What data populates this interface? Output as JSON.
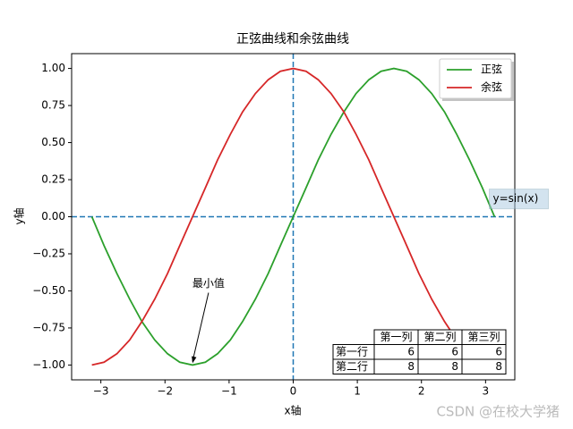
{
  "chart_data": {
    "type": "line",
    "title": "正弦曲线和余弦曲线",
    "x_label": "x轴",
    "y_label": "y轴",
    "x": [
      -3.14,
      -2.95,
      -2.75,
      -2.55,
      -2.36,
      -2.16,
      -1.96,
      -1.77,
      -1.57,
      -1.37,
      -1.18,
      -0.98,
      -0.79,
      -0.59,
      -0.39,
      -0.2,
      0,
      0.2,
      0.39,
      0.59,
      0.79,
      0.98,
      1.18,
      1.37,
      1.57,
      1.77,
      1.96,
      2.16,
      2.36,
      2.55,
      2.75,
      2.95,
      3.14
    ],
    "series": [
      {
        "name": "正弦",
        "color": "#2ca02c",
        "values": [
          0,
          -0.195,
          -0.383,
          -0.556,
          -0.707,
          -0.831,
          -0.924,
          -0.981,
          -1,
          -0.981,
          -0.924,
          -0.831,
          -0.707,
          -0.556,
          -0.383,
          -0.195,
          0,
          0.195,
          0.383,
          0.556,
          0.707,
          0.831,
          0.924,
          0.981,
          1,
          0.981,
          0.924,
          0.831,
          0.707,
          0.556,
          0.383,
          0.195,
          0
        ]
      },
      {
        "name": "余弦",
        "color": "#d62728",
        "values": [
          -1,
          -0.981,
          -0.924,
          -0.831,
          -0.707,
          -0.556,
          -0.383,
          -0.195,
          0,
          0.195,
          0.383,
          0.556,
          0.707,
          0.831,
          0.924,
          0.981,
          1,
          0.981,
          0.924,
          0.831,
          0.707,
          0.556,
          0.383,
          0.195,
          0,
          -0.195,
          -0.383,
          -0.556,
          -0.707,
          -0.831,
          -0.924,
          -0.981,
          -1
        ]
      }
    ],
    "xlim": [
      -3.456,
      3.456
    ],
    "ylim": [
      -1.1,
      1.1
    ],
    "xticks": [
      {
        "value": -3,
        "label": "−3"
      },
      {
        "value": -2,
        "label": "−2"
      },
      {
        "value": -1,
        "label": "−1"
      },
      0,
      1,
      2,
      3
    ],
    "yticks": [
      {
        "value": -1,
        "label": "−1.00"
      },
      {
        "value": -0.75,
        "label": "−0.75"
      },
      {
        "value": -0.5,
        "label": "−0.50"
      },
      {
        "value": -0.25,
        "label": "−0.25"
      },
      {
        "value": 0,
        "label": "0.00"
      },
      {
        "value": 0.25,
        "label": "0.25"
      },
      {
        "value": 0.5,
        "label": "0.50"
      },
      {
        "value": 0.75,
        "label": "0.75"
      },
      {
        "value": 1,
        "label": "1.00"
      }
    ],
    "hline": 0,
    "vline": 0,
    "ref_color": "#1f77b4",
    "legend": "upper right",
    "annotations": [
      {
        "text": "y=sin(x)",
        "x": 3.1,
        "y": 0.12
      },
      {
        "text": "最小值",
        "x": -1.6,
        "y": -0.5,
        "xy": [
          -1.57,
          -1
        ]
      }
    ],
    "table": {
      "col_labels": [
        "第一列",
        "第二列",
        "第三列"
      ],
      "row_labels": [
        "第一行",
        "第二行"
      ],
      "cells": [
        [
          6,
          6,
          6
        ],
        [
          8,
          8,
          8
        ]
      ]
    }
  },
  "watermark": "CSDN @在校大学猪"
}
